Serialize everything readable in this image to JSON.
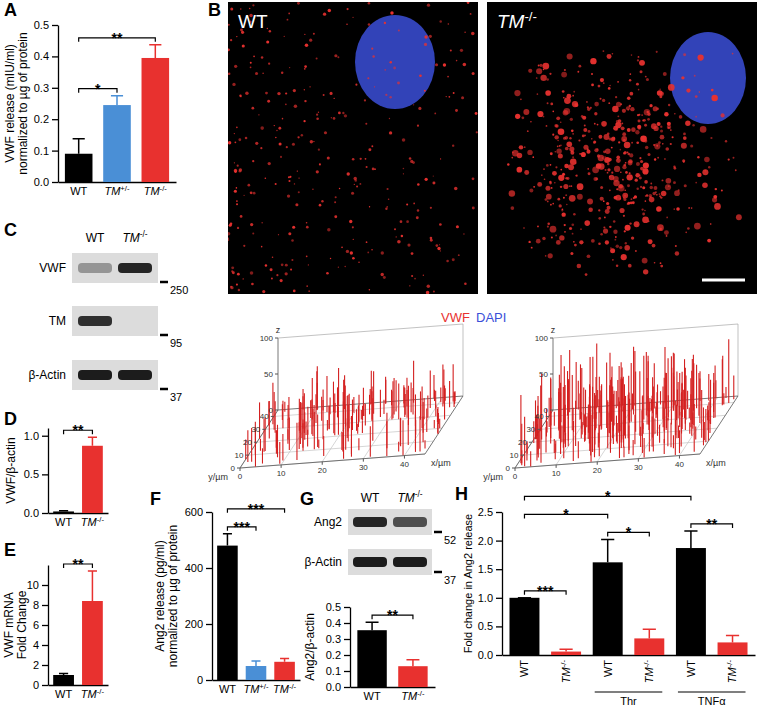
{
  "chart_data": [
    {
      "type": "bar",
      "y_label": [
        "VWF release (mIU/ml)",
        "normalized to µg of protein"
      ],
      "categories": [
        "WT",
        "TM+/-",
        "TM-/-"
      ],
      "values": [
        0.09,
        0.245,
        0.395
      ],
      "errors": [
        0.048,
        0.03,
        0.042
      ],
      "colors": [
        "#000000",
        "#4a8fd6",
        "#e8312f"
      ],
      "ylim": [
        0,
        0.5
      ],
      "yticks": [
        {
          "value": 0,
          "label": "0.0"
        },
        0.1,
        0.2,
        0.3,
        0.4,
        0.5
      ],
      "annotations": [
        {
          "from": 0,
          "to": 1,
          "label": "*"
        },
        {
          "from": 0,
          "to": 2,
          "label": "**"
        }
      ]
    },
    {
      "type": "bar",
      "y_label": [
        "VWF/β-actin"
      ],
      "categories": [
        "WT",
        "TM-/-"
      ],
      "values": [
        0.02,
        0.87
      ],
      "errors": [
        0.01,
        0.11
      ],
      "colors": [
        "#000000",
        "#e8312f"
      ],
      "ylim": [
        0,
        1.1
      ],
      "yticks": [
        {
          "value": 0,
          "label": "0.0"
        },
        0.5,
        {
          "value": 1,
          "label": "1.0"
        }
      ],
      "annotations": [
        {
          "from": 0,
          "to": 1,
          "label": "**"
        }
      ]
    },
    {
      "type": "bar",
      "y_label": [
        "VWF mRNA",
        "Fold Change"
      ],
      "categories": [
        "WT",
        "TM-/-"
      ],
      "values": [
        1.0,
        8.4
      ],
      "errors": [
        0.15,
        3.0
      ],
      "colors": [
        "#000000",
        "#e8312f"
      ],
      "ylim": [
        0,
        12
      ],
      "yticks": [
        0,
        2,
        4,
        6,
        8,
        10
      ],
      "annotations": [
        {
          "from": 0,
          "to": 1,
          "label": "**"
        }
      ]
    },
    {
      "type": "bar",
      "y_label": [
        "Ang2 release (pg/ml)",
        "normalized to µg of protein"
      ],
      "categories": [
        "WT",
        "TM+/-",
        "TM-/-"
      ],
      "values": [
        480,
        50,
        65
      ],
      "errors": [
        42,
        18,
        12
      ],
      "colors": [
        "#000000",
        "#4a8fd6",
        "#e8312f"
      ],
      "ylim": [
        0,
        600
      ],
      "yticks": [
        0,
        200,
        400,
        600
      ],
      "annotations": [
        {
          "from": 0,
          "to": 1,
          "label": "***"
        },
        {
          "from": 0,
          "to": 2,
          "label": "***"
        }
      ]
    },
    {
      "type": "bar",
      "y_label": [
        "Ang2/β-actin"
      ],
      "categories": [
        "WT",
        "TM-/-"
      ],
      "values": [
        0.355,
        0.13
      ],
      "errors": [
        0.05,
        0.04
      ],
      "colors": [
        "#000000",
        "#e8312f"
      ],
      "ylim": [
        0,
        0.5
      ],
      "yticks": [
        {
          "value": 0,
          "label": "0.0"
        },
        0.1,
        0.2,
        0.3,
        0.4,
        0.5
      ],
      "annotations": [
        {
          "from": 0,
          "to": 1,
          "label": "**"
        }
      ]
    },
    {
      "type": "bar",
      "y_label": [
        "Fold change in Ang2 release"
      ],
      "categories": [
        "WT",
        "TM-/-",
        "WT",
        "TM-/-",
        "WT",
        "TM-/-"
      ],
      "values": [
        1.0,
        0.06,
        1.62,
        0.29,
        1.87,
        0.22
      ],
      "errors": [
        0,
        0.04,
        0.4,
        0.16,
        0.3,
        0.12
      ],
      "colors": [
        "#000000",
        "#e8312f",
        "#000000",
        "#e8312f",
        "#000000",
        "#e8312f"
      ],
      "ylim": [
        0,
        2.5
      ],
      "yticks": [
        {
          "value": 0,
          "label": "0.0"
        },
        0.5,
        {
          "value": 1,
          "label": "1.0"
        },
        1.5,
        {
          "value": 2,
          "label": "2.0"
        },
        2.5
      ],
      "groups": [
        {
          "label": "Thr",
          "from": 2,
          "to": 3
        },
        {
          "label": "TNFα",
          "from": 4,
          "to": 5
        }
      ],
      "annotations": [
        {
          "from": 0,
          "to": 1,
          "label": "***"
        },
        {
          "from": 2,
          "to": 3,
          "label": "*"
        },
        {
          "from": 4,
          "to": 5,
          "label": "**"
        },
        {
          "from": 0,
          "to": 2,
          "label": "*"
        },
        {
          "from": 0,
          "to": 4,
          "label": "*"
        }
      ]
    }
  ],
  "figure": {
    "panel_labels": [
      "A",
      "B",
      "C",
      "D",
      "E",
      "F",
      "G",
      "H"
    ],
    "microscopy": {
      "labels": [
        "WT",
        "TM-/-"
      ],
      "legend": [
        {
          "name": "VWF",
          "color": "#e8312f"
        },
        {
          "name": "DAPI",
          "color": "#3b4fd8"
        }
      ]
    },
    "surface_plot": {
      "x_label": "x/µm",
      "y_label": "y/µm",
      "z_label": "z",
      "xlim": [
        0,
        45
      ],
      "xticks": [
        0,
        10,
        20,
        30,
        40
      ],
      "ylim": [
        0,
        45
      ],
      "yticks": [
        0,
        10,
        20,
        30,
        40
      ],
      "zlim": [
        0,
        100
      ],
      "zticks": [
        0,
        50,
        100
      ]
    },
    "blot_C": {
      "lanes": [
        "WT",
        "TM-/-"
      ],
      "rows": [
        "VWF",
        "TM",
        "β-Actin"
      ],
      "markers": [
        250,
        95,
        37
      ]
    },
    "blot_G": {
      "lanes": [
        "WT",
        "TM-/-"
      ],
      "rows": [
        "Ang2",
        "β-Actin"
      ],
      "markers": [
        52,
        37
      ]
    }
  }
}
